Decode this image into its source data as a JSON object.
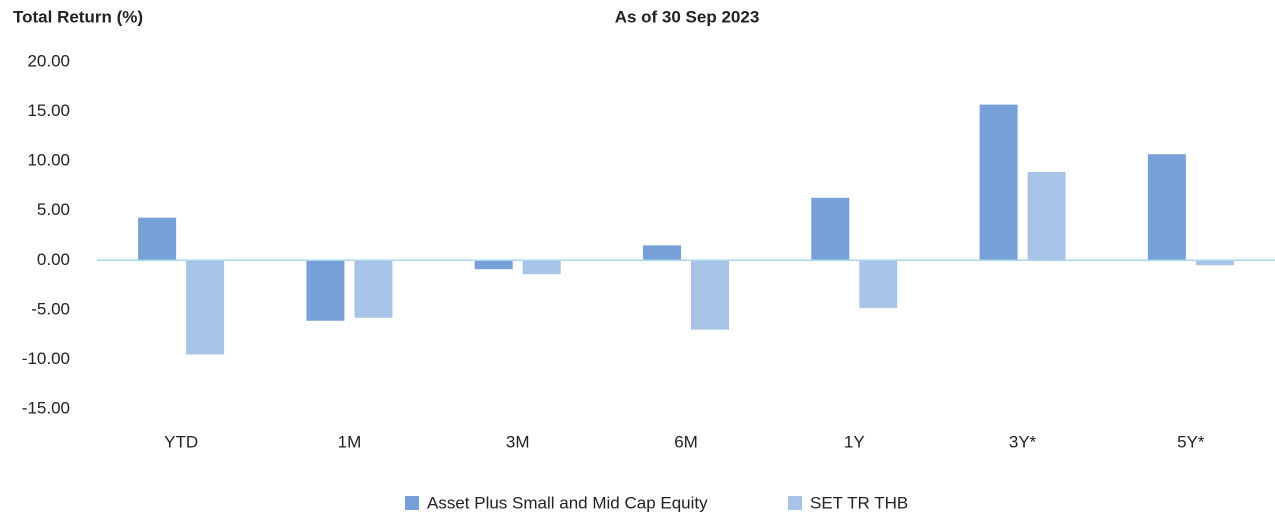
{
  "chart_data": {
    "type": "bar",
    "title": "Total Return (%)",
    "subtitle": "As of 30 Sep 2023",
    "categories": [
      "YTD",
      "1M",
      "3M",
      "6M",
      "1Y",
      "3Y*",
      "5Y*"
    ],
    "series": [
      {
        "name": "Asset Plus Small and Mid Cap Equity",
        "color": "#779fd8",
        "values": [
          4.3,
          -6.1,
          -0.9,
          1.5,
          6.3,
          15.7,
          10.7
        ]
      },
      {
        "name": "SET TR THB",
        "color": "#a7c4e8",
        "values": [
          -9.5,
          -5.8,
          -1.4,
          -7.0,
          -4.8,
          8.9,
          -0.5
        ]
      }
    ],
    "ylim": [
      -15,
      20
    ],
    "yticks": [
      {
        "value": -15,
        "label": "-15.00"
      },
      {
        "value": -10,
        "label": "-10.00"
      },
      {
        "value": -5,
        "label": "-5.00"
      },
      {
        "value": 0,
        "label": "0.00"
      },
      {
        "value": 5,
        "label": "5.00"
      },
      {
        "value": 10,
        "label": "10.00"
      },
      {
        "value": 15,
        "label": "15.00"
      },
      {
        "value": 20,
        "label": "20.00"
      }
    ],
    "grid": false,
    "legend": "bottom"
  }
}
